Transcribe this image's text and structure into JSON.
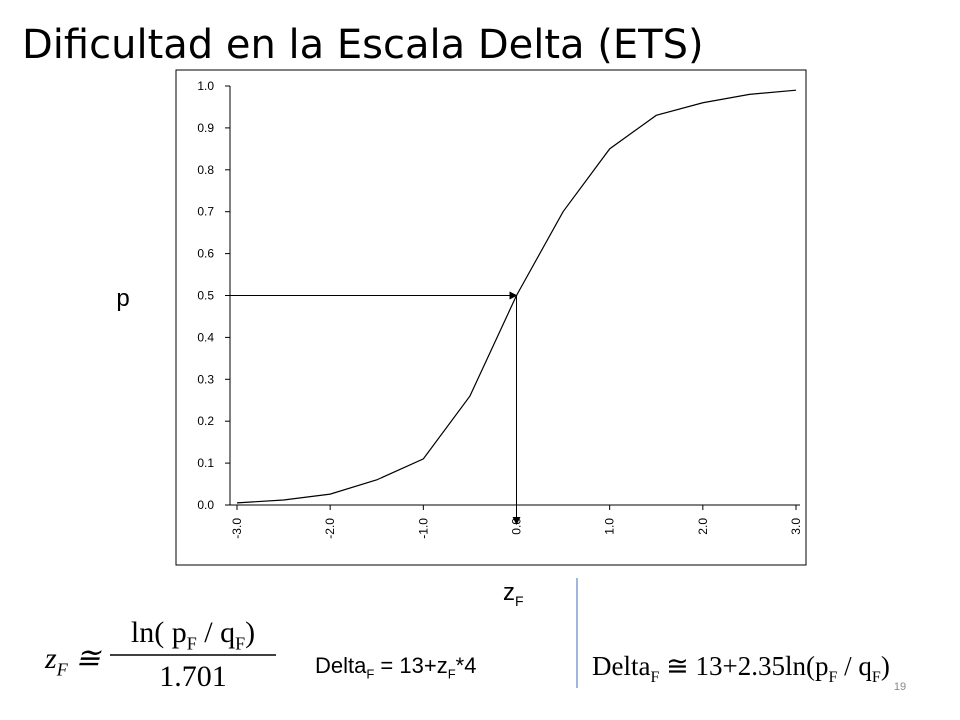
{
  "title": "Dificultad en la Escala Delta (ETS)",
  "chart_data": {
    "type": "line",
    "x": [
      -3,
      -2.5,
      -2,
      -1.5,
      -1,
      -0.5,
      0,
      0.5,
      1,
      1.5,
      2,
      2.5,
      3
    ],
    "values": [
      0.005,
      0.012,
      0.026,
      0.06,
      0.11,
      0.26,
      0.5,
      0.7,
      0.85,
      0.93,
      0.96,
      0.98,
      0.99
    ],
    "color": "#000000",
    "xlim": [
      -3,
      3
    ],
    "xticks": [
      {
        "value": -3,
        "label": "-3.0"
      },
      {
        "value": -2,
        "label": "-2.0"
      },
      {
        "value": -1,
        "label": "-1.0"
      },
      {
        "value": 0,
        "label": "0.0"
      },
      {
        "value": 1,
        "label": "1.0"
      },
      {
        "value": 2,
        "label": "2.0"
      },
      {
        "value": 3,
        "label": "3.0"
      }
    ],
    "ylim": [
      0,
      1
    ],
    "yticks": [
      {
        "value": 0,
        "label": "0.0"
      },
      0.1,
      0.2,
      0.3,
      0.4,
      0.5,
      0.6,
      0.7,
      0.8,
      0.9,
      {
        "value": 1,
        "label": "1.0"
      }
    ],
    "y_label": "p",
    "x_label": [
      {
        "text": "z"
      },
      {
        "text": "F",
        "sub": true
      }
    ],
    "marker": {
      "x": 0,
      "y": 0.5
    }
  },
  "formula_z_lhs": [
    {
      "text": "z"
    },
    {
      "text": "F",
      "sub": true
    },
    {
      "text": " ≅"
    }
  ],
  "formula_z_numerator": [
    {
      "text": "ln( "
    },
    {
      "text": "p"
    },
    {
      "text": "F",
      "sub": true
    },
    {
      "text": " / "
    },
    {
      "text": "q"
    },
    {
      "text": "F",
      "sub": true
    },
    {
      "text": ")"
    }
  ],
  "formula_z_denominator": [
    {
      "text": "1.701"
    }
  ],
  "formula_delta_plain": [
    {
      "text": "Delta"
    },
    {
      "text": "F",
      "sub": true
    },
    {
      "text": " = 13+z"
    },
    {
      "text": "F",
      "sub": true
    },
    {
      "text": "*4"
    }
  ],
  "formula_delta": [
    {
      "text": "Delta"
    },
    {
      "text": "F",
      "sub": true
    },
    {
      "text": " ≅ 13+2.35ln("
    },
    {
      "text": "p"
    },
    {
      "text": "F",
      "sub": true
    },
    {
      "text": " / "
    },
    {
      "text": "q"
    },
    {
      "text": "F",
      "sub": true
    },
    {
      "text": ")"
    }
  ],
  "slide_number": "19"
}
